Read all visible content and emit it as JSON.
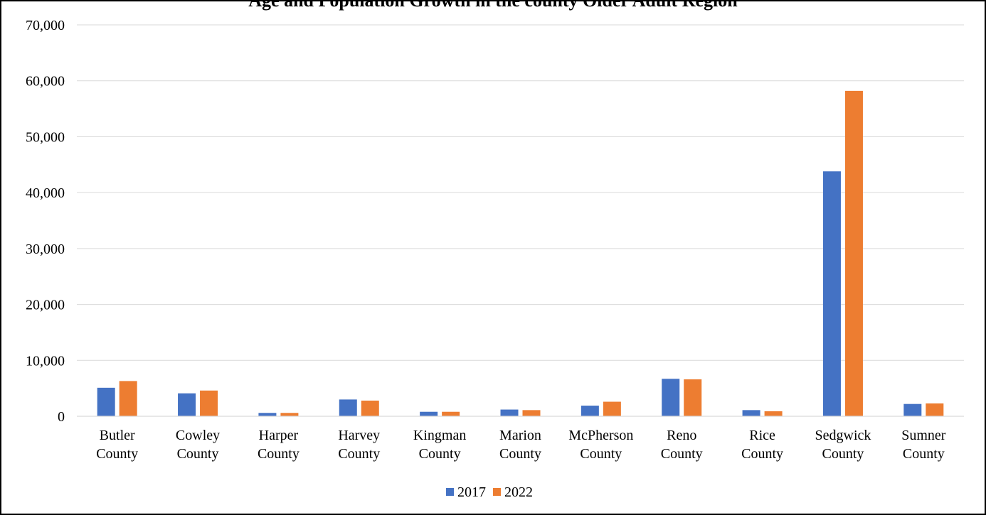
{
  "chart_data": {
    "type": "bar",
    "title": "Age and Population Growth in the county Older Adult Region",
    "categories": [
      [
        "Butler",
        "County"
      ],
      [
        "Cowley",
        "County"
      ],
      [
        "Harper",
        "County"
      ],
      [
        "Harvey",
        "County"
      ],
      [
        "Kingman",
        "County"
      ],
      [
        "Marion",
        "County"
      ],
      [
        "McPherson",
        "County"
      ],
      [
        "Reno",
        "County"
      ],
      [
        "Rice",
        "County"
      ],
      [
        "Sedgwick",
        "County"
      ],
      [
        "Sumner",
        "County"
      ]
    ],
    "series": [
      {
        "name": "2017",
        "color": "#4472C4",
        "values": [
          5100,
          4100,
          600,
          3000,
          800,
          1200,
          1900,
          6700,
          1100,
          43800,
          2200
        ]
      },
      {
        "name": "2022",
        "color": "#ED7D31",
        "values": [
          6300,
          4600,
          600,
          2800,
          800,
          1100,
          2600,
          6600,
          900,
          58200,
          2300
        ]
      }
    ],
    "ylim": [
      0,
      70000
    ],
    "yticks": [
      0,
      10000,
      20000,
      30000,
      40000,
      50000,
      60000,
      70000
    ],
    "ytick_labels": [
      "0",
      "10,000",
      "20,000",
      "30,000",
      "40,000",
      "50,000",
      "60,000",
      "70,000"
    ],
    "grid": true,
    "legend_position": "bottom"
  }
}
